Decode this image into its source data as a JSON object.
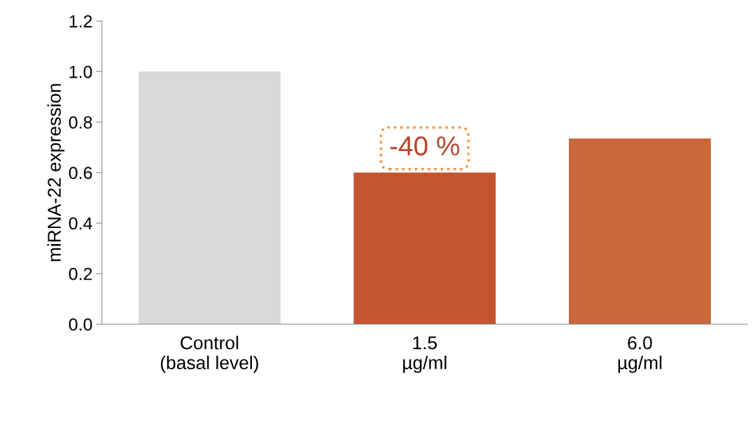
{
  "chart_data": {
    "type": "bar",
    "ylabel": "miRNA-22 expression",
    "categories": [
      "Control\n(basal level)",
      "1.5\nµg/ml",
      "6.0\nµg/ml"
    ],
    "values": [
      1.0,
      0.6,
      0.735
    ],
    "colors": [
      "#d9d9d9",
      "#c4552f",
      "#c9683a"
    ],
    "ylim": [
      0,
      1.2
    ],
    "yticks": [
      {
        "value": 0,
        "label": "0.0"
      },
      {
        "value": 0.2,
        "label": "0.2"
      },
      {
        "value": 0.4,
        "label": "0.4"
      },
      {
        "value": 0.6,
        "label": "0.6"
      },
      {
        "value": 0.8,
        "label": "0.8"
      },
      {
        "value": 1.0,
        "label": "1.0"
      },
      {
        "value": 1.2,
        "label": "1.2"
      }
    ],
    "annotations": [
      {
        "text": "-40 %",
        "x": "1.5\nµg/ml",
        "y": 0.6
      }
    ],
    "grid": false
  }
}
